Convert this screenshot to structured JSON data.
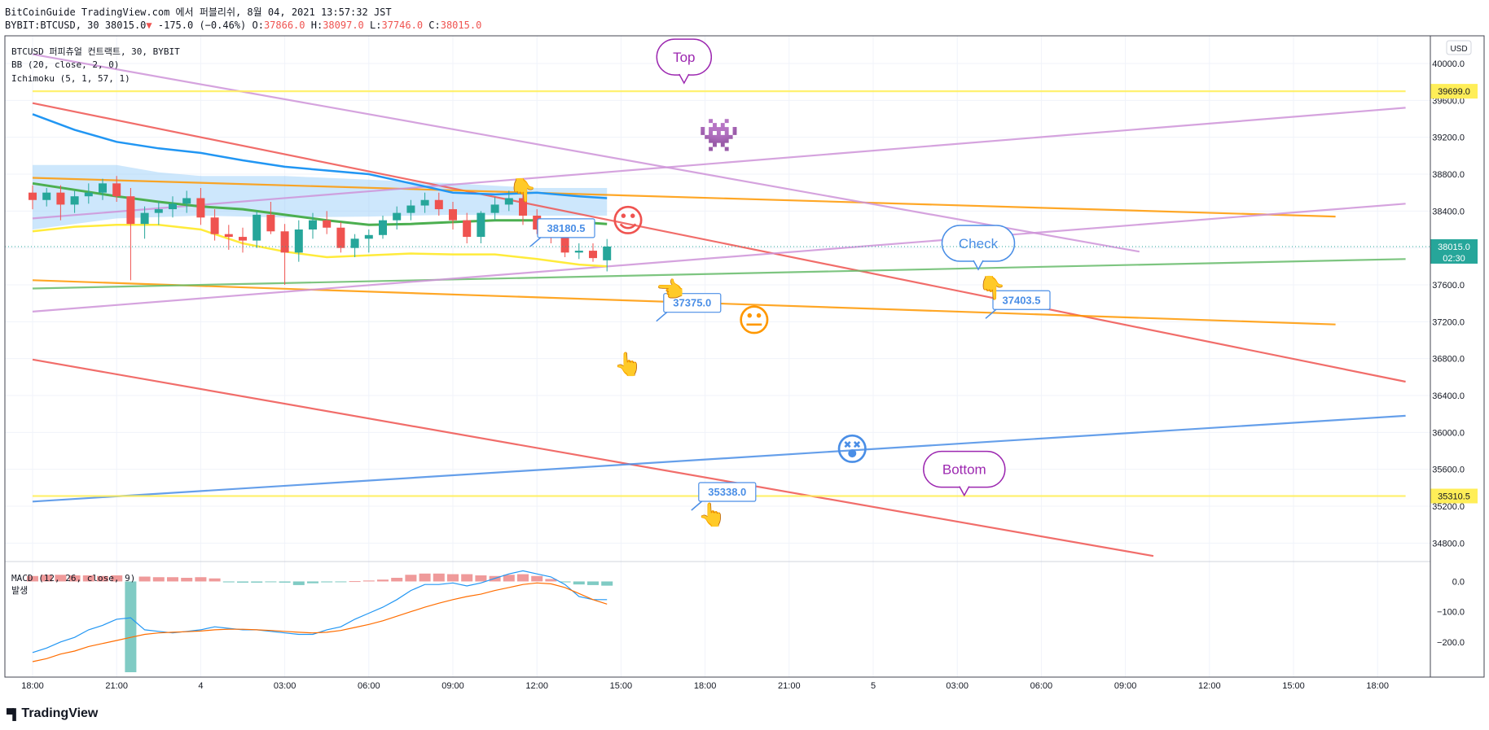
{
  "header": {
    "publisher_line": "BitCoinGuide TradingView.com 에서 퍼블리쉬, 8월 04, 2021 13:57:32 JST",
    "symbol_interval": "BYBIT:BTCUSD, 30",
    "last": "38015.0",
    "down_arrow": "▼",
    "change": "-175.0 (−0.46%)",
    "o_label": "O:",
    "o": "37866.0",
    "h_label": "H:",
    "h": "38097.0",
    "l_label": "L:",
    "l": "37746.0",
    "c_label": "C:",
    "c": "38015.0"
  },
  "legend": {
    "title": "BTCUSD 퍼피츄얼 컨트랙트, 30, BYBIT",
    "bb": "BB (20, close, 2, 0)",
    "ichimoku": "Ichimoku (5, 1, 57, 1)",
    "macd": "MACD (12, 26, close, 9)",
    "hist_label": "발생"
  },
  "currency": "USD",
  "watermark": "TradingView",
  "colors": {
    "up": "#26a69a",
    "down": "#ef5350",
    "bb_basis": "#4caf50",
    "bb_band": "#ffeb3b",
    "tenkan": "#2196f3",
    "cloud": "#90caf9",
    "red_line": "#ef5350",
    "orange_line": "#ff9800",
    "green_line": "#66bb6a",
    "violet_line": "#ce93d8",
    "blue_line": "#4a8ee6",
    "yellow_line": "#ffee58",
    "macd": "#2196f3",
    "signal": "#ff6d00",
    "hist_up": "#ef9a9a",
    "hist_dn": "#80cbc4",
    "purple_note": "#9c27b0"
  },
  "chart_data": [
    {
      "type": "candlestick",
      "title": "BTCUSD 퍼피츄얼 컨트랙트, 30, BYBIT",
      "ylim": [
        34600,
        40300
      ],
      "y_ticks": [
        34800,
        35200,
        35600,
        36000,
        36400,
        36800,
        37200,
        37600,
        38000,
        38400,
        38800,
        39200,
        39600,
        40000
      ],
      "y_tick_labels": [
        "34800.0",
        "35200.0",
        "35600.0",
        "36000.0",
        "36400.0",
        "36800.0",
        "37200.0",
        "37600.0",
        "38000.0",
        "38400.0",
        "38800.0",
        "39200.0",
        "39600.0",
        "40000.0"
      ],
      "x_labels": [
        {
          "t": 0,
          "label": "18:00"
        },
        {
          "t": 6,
          "label": "21:00"
        },
        {
          "t": 12,
          "label": "4"
        },
        {
          "t": 18,
          "label": "03:00"
        },
        {
          "t": 24,
          "label": "06:00"
        },
        {
          "t": 30,
          "label": "09:00"
        },
        {
          "t": 36,
          "label": "12:00"
        },
        {
          "t": 42,
          "label": "15:00"
        },
        {
          "t": 48,
          "label": "18:00"
        },
        {
          "t": 54,
          "label": "21:00"
        },
        {
          "t": 60,
          "label": "5"
        },
        {
          "t": 66,
          "label": "03:00"
        },
        {
          "t": 72,
          "label": "06:00"
        },
        {
          "t": 78,
          "label": "09:00"
        },
        {
          "t": 84,
          "label": "12:00"
        },
        {
          "t": 90,
          "label": "15:00"
        },
        {
          "t": 96,
          "label": "18:00"
        }
      ],
      "price_tags": [
        {
          "value": 39699.0,
          "label": "39699.0",
          "kind": "yellow"
        },
        {
          "value": 38015.0,
          "label": "38015.0",
          "sub": "02:30",
          "kind": "last"
        },
        {
          "value": 35310.5,
          "label": "35310.5",
          "kind": "yellow"
        }
      ],
      "candles": [
        {
          "t": 0,
          "o": 38600,
          "h": 38680,
          "l": 38420,
          "c": 38520
        },
        {
          "t": 1,
          "o": 38520,
          "h": 38650,
          "l": 38450,
          "c": 38600
        },
        {
          "t": 2,
          "o": 38600,
          "h": 38680,
          "l": 38300,
          "c": 38470
        },
        {
          "t": 3,
          "o": 38470,
          "h": 38620,
          "l": 38380,
          "c": 38560
        },
        {
          "t": 4,
          "o": 38560,
          "h": 38700,
          "l": 38480,
          "c": 38600
        },
        {
          "t": 5,
          "o": 38600,
          "h": 38750,
          "l": 38520,
          "c": 38700
        },
        {
          "t": 6,
          "o": 38700,
          "h": 38780,
          "l": 38500,
          "c": 38560
        },
        {
          "t": 7,
          "o": 38560,
          "h": 38650,
          "l": 37650,
          "c": 38260
        },
        {
          "t": 8,
          "o": 38260,
          "h": 38450,
          "l": 38100,
          "c": 38380
        },
        {
          "t": 9,
          "o": 38380,
          "h": 38500,
          "l": 38250,
          "c": 38420
        },
        {
          "t": 10,
          "o": 38420,
          "h": 38560,
          "l": 38330,
          "c": 38480
        },
        {
          "t": 11,
          "o": 38480,
          "h": 38620,
          "l": 38380,
          "c": 38540
        },
        {
          "t": 12,
          "o": 38540,
          "h": 38650,
          "l": 38250,
          "c": 38330
        },
        {
          "t": 13,
          "o": 38330,
          "h": 38420,
          "l": 38080,
          "c": 38150
        },
        {
          "t": 14,
          "o": 38150,
          "h": 38250,
          "l": 37980,
          "c": 38120
        },
        {
          "t": 15,
          "o": 38120,
          "h": 38220,
          "l": 37950,
          "c": 38080
        },
        {
          "t": 16,
          "o": 38080,
          "h": 38400,
          "l": 38000,
          "c": 38360
        },
        {
          "t": 17,
          "o": 38360,
          "h": 38500,
          "l": 38150,
          "c": 38180
        },
        {
          "t": 18,
          "o": 38180,
          "h": 38260,
          "l": 37600,
          "c": 37950
        },
        {
          "t": 19,
          "o": 37950,
          "h": 38300,
          "l": 37850,
          "c": 38200
        },
        {
          "t": 20,
          "o": 38200,
          "h": 38380,
          "l": 38100,
          "c": 38300
        },
        {
          "t": 21,
          "o": 38300,
          "h": 38400,
          "l": 38150,
          "c": 38220
        },
        {
          "t": 22,
          "o": 38220,
          "h": 38280,
          "l": 37950,
          "c": 38000
        },
        {
          "t": 23,
          "o": 38000,
          "h": 38150,
          "l": 37900,
          "c": 38100
        },
        {
          "t": 24,
          "o": 38100,
          "h": 38200,
          "l": 37950,
          "c": 38140
        },
        {
          "t": 25,
          "o": 38140,
          "h": 38350,
          "l": 38100,
          "c": 38300
        },
        {
          "t": 26,
          "o": 38300,
          "h": 38450,
          "l": 38200,
          "c": 38380
        },
        {
          "t": 27,
          "o": 38380,
          "h": 38520,
          "l": 38300,
          "c": 38460
        },
        {
          "t": 28,
          "o": 38460,
          "h": 38600,
          "l": 38380,
          "c": 38520
        },
        {
          "t": 29,
          "o": 38520,
          "h": 38600,
          "l": 38350,
          "c": 38420
        },
        {
          "t": 30,
          "o": 38420,
          "h": 38500,
          "l": 38200,
          "c": 38300
        },
        {
          "t": 31,
          "o": 38300,
          "h": 38380,
          "l": 38050,
          "c": 38120
        },
        {
          "t": 32,
          "o": 38120,
          "h": 38400,
          "l": 38050,
          "c": 38380
        },
        {
          "t": 33,
          "o": 38380,
          "h": 38550,
          "l": 38300,
          "c": 38470
        },
        {
          "t": 34,
          "o": 38470,
          "h": 38620,
          "l": 38400,
          "c": 38540
        },
        {
          "t": 35,
          "o": 38540,
          "h": 38600,
          "l": 38250,
          "c": 38350
        },
        {
          "t": 36,
          "o": 38350,
          "h": 38420,
          "l": 38150,
          "c": 38200
        },
        {
          "t": 37,
          "o": 38200,
          "h": 38260,
          "l": 38050,
          "c": 38120
        },
        {
          "t": 38,
          "o": 38120,
          "h": 38200,
          "l": 37900,
          "c": 37950
        },
        {
          "t": 39,
          "o": 37950,
          "h": 38050,
          "l": 37880,
          "c": 37970
        },
        {
          "t": 40,
          "o": 37970,
          "h": 38050,
          "l": 37850,
          "c": 37890
        },
        {
          "t": 41,
          "o": 37866,
          "h": 38097,
          "l": 37746,
          "c": 38015
        }
      ],
      "overlays": {
        "tenkan": [
          [
            0,
            39450
          ],
          [
            3,
            39280
          ],
          [
            6,
            39150
          ],
          [
            9,
            39080
          ],
          [
            12,
            39030
          ],
          [
            15,
            38950
          ],
          [
            18,
            38880
          ],
          [
            21,
            38840
          ],
          [
            24,
            38800
          ],
          [
            27,
            38700
          ],
          [
            30,
            38600
          ],
          [
            33,
            38580
          ],
          [
            36,
            38600
          ],
          [
            39,
            38560
          ],
          [
            41,
            38540
          ]
        ],
        "cloud_top": [
          [
            0,
            38900
          ],
          [
            6,
            38900
          ],
          [
            9,
            38820
          ],
          [
            12,
            38780
          ],
          [
            18,
            38780
          ],
          [
            24,
            38740
          ],
          [
            30,
            38700
          ],
          [
            36,
            38650
          ],
          [
            41,
            38650
          ]
        ],
        "cloud_bottom": [
          [
            0,
            38200
          ],
          [
            6,
            38320
          ],
          [
            12,
            38350
          ],
          [
            18,
            38330
          ],
          [
            24,
            38340
          ],
          [
            30,
            38360
          ],
          [
            36,
            38350
          ],
          [
            41,
            38350
          ]
        ],
        "bb_basis": [
          [
            0,
            38700
          ],
          [
            6,
            38560
          ],
          [
            9,
            38500
          ],
          [
            12,
            38450
          ],
          [
            15,
            38420
          ],
          [
            18,
            38360
          ],
          [
            21,
            38300
          ],
          [
            24,
            38250
          ],
          [
            27,
            38260
          ],
          [
            30,
            38280
          ],
          [
            33,
            38300
          ],
          [
            36,
            38300
          ],
          [
            39,
            38280
          ],
          [
            41,
            38260
          ]
        ],
        "bb_lower": [
          [
            0,
            38180
          ],
          [
            3,
            38230
          ],
          [
            6,
            38250
          ],
          [
            9,
            38250
          ],
          [
            12,
            38200
          ],
          [
            15,
            38050
          ],
          [
            18,
            37960
          ],
          [
            21,
            37900
          ],
          [
            24,
            37920
          ],
          [
            27,
            37940
          ],
          [
            30,
            37930
          ],
          [
            33,
            37930
          ],
          [
            36,
            37880
          ],
          [
            39,
            37820
          ],
          [
            41,
            37800
          ]
        ]
      },
      "trend_lines": [
        {
          "color": "red_line",
          "pts": [
            [
              0,
              39570
            ],
            [
              98,
              36550
            ]
          ]
        },
        {
          "color": "red_line",
          "pts": [
            [
              0,
              36790
            ],
            [
              80,
              34660
            ]
          ]
        },
        {
          "color": "orange_line",
          "pts": [
            [
              0,
              38760
            ],
            [
              93,
              38340
            ]
          ]
        },
        {
          "color": "orange_line",
          "pts": [
            [
              0,
              37650
            ],
            [
              93,
              37170
            ]
          ]
        },
        {
          "color": "green_line",
          "pts": [
            [
              0,
              37560
            ],
            [
              98,
              37880
            ]
          ]
        },
        {
          "color": "violet_line",
          "pts": [
            [
              0,
              40100
            ],
            [
              79,
              37960
            ]
          ]
        },
        {
          "color": "violet_line",
          "pts": [
            [
              0,
              38320
            ],
            [
              98,
              39520
            ]
          ]
        },
        {
          "color": "violet_line",
          "pts": [
            [
              0,
              37310
            ],
            [
              98,
              38480
            ]
          ]
        },
        {
          "color": "blue_line",
          "pts": [
            [
              0,
              35250
            ],
            [
              98,
              36180
            ]
          ]
        },
        {
          "color": "yellow_line",
          "pts": [
            [
              0,
              39699
            ],
            [
              98,
              39699
            ]
          ]
        },
        {
          "color": "yellow_line",
          "pts": [
            [
              0,
              35310.5
            ],
            [
              98,
              35310.5
            ]
          ]
        }
      ],
      "annotations": [
        {
          "kind": "bubble",
          "text": "Top",
          "t": 46.5,
          "p": 40070,
          "color": "purple_note"
        },
        {
          "kind": "bubble",
          "text": "Check",
          "t": 67.5,
          "p": 38050,
          "color": "blue_line"
        },
        {
          "kind": "bubble",
          "text": "Bottom",
          "t": 66.5,
          "p": 35600,
          "color": "purple_note"
        },
        {
          "kind": "price_label",
          "text": "38180.5",
          "t": 37.5,
          "p": 38210
        },
        {
          "kind": "price_label",
          "text": "37375.0",
          "t": 46.5,
          "p": 37400
        },
        {
          "kind": "price_label",
          "text": "37403.5",
          "t": 70,
          "p": 37430
        },
        {
          "kind": "price_label",
          "text": "35338.0",
          "t": 49,
          "p": 35350
        },
        {
          "kind": "emoji",
          "glyph": "☺",
          "t": 42.5,
          "p": 38280,
          "color": "red_line"
        },
        {
          "kind": "emoji",
          "glyph": "😐",
          "t": 51.5,
          "p": 37200,
          "color": "orange_line"
        },
        {
          "kind": "emoji",
          "glyph": "😵",
          "t": 58.5,
          "p": 35800,
          "color": "blue_line"
        },
        {
          "kind": "emoji",
          "glyph": "👾",
          "t": 49,
          "p": 39210,
          "color": "purple_note"
        },
        {
          "kind": "hand",
          "glyph": "👆",
          "t": 42.5,
          "p": 36760
        },
        {
          "kind": "hand",
          "glyph": "👆",
          "t": 48.5,
          "p": 35130
        },
        {
          "kind": "hand",
          "glyph": "👈",
          "t": 45.5,
          "p": 37570
        },
        {
          "kind": "hand",
          "glyph": "👇",
          "t": 68.5,
          "p": 37590
        },
        {
          "kind": "hand",
          "glyph": "👇",
          "t": 35,
          "p": 38650
        }
      ]
    },
    {
      "type": "bar",
      "title": "MACD (12, 26, close, 9)",
      "ylim": [
        -300,
        55
      ],
      "y_ticks": [
        0,
        -100,
        -200
      ],
      "y_tick_labels": [
        "0.0",
        "−100.0",
        "−200.0"
      ],
      "histogram": [
        18,
        22,
        22,
        20,
        20,
        18,
        20,
        -300,
        16,
        14,
        14,
        12,
        14,
        10,
        -3,
        -4,
        -4,
        -2,
        -4,
        -12,
        -6,
        -3,
        -1,
        1,
        3,
        6,
        12,
        22,
        26,
        26,
        24,
        24,
        20,
        18,
        22,
        24,
        18,
        8,
        -3,
        -10,
        -12,
        -14
      ],
      "macd": [
        -235,
        -220,
        -200,
        -185,
        -160,
        -145,
        -125,
        -120,
        -160,
        -165,
        -170,
        -165,
        -160,
        -150,
        -155,
        -160,
        -160,
        -165,
        -170,
        -175,
        -175,
        -160,
        -150,
        -125,
        -105,
        -85,
        -60,
        -30,
        -10,
        -10,
        -5,
        -15,
        -5,
        10,
        25,
        35,
        25,
        15,
        -10,
        -50,
        -60,
        -60
      ],
      "signal": [
        -265,
        -255,
        -240,
        -230,
        -215,
        -205,
        -195,
        -185,
        -175,
        -170,
        -168,
        -166,
        -164,
        -160,
        -158,
        -158,
        -160,
        -162,
        -165,
        -168,
        -170,
        -168,
        -162,
        -152,
        -142,
        -130,
        -115,
        -100,
        -85,
        -72,
        -60,
        -50,
        -42,
        -30,
        -20,
        -10,
        -5,
        -8,
        -20,
        -40,
        -60,
        -75
      ]
    }
  ]
}
